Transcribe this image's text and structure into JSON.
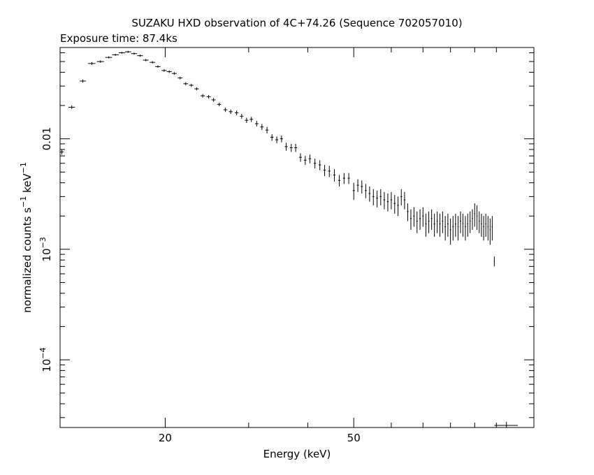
{
  "chart_data": {
    "type": "scatter",
    "title": "SUZAKU HXD observation of 4C+74.26 (Sequence 702057010)",
    "subtitle": "Exposure time: 87.4ks",
    "xlabel": "Energy (keV)",
    "ylabel_parts": {
      "base": "normalized counts s",
      "exp1": "−1",
      "mid": " keV",
      "exp2": "−1"
    },
    "x_scale": "log",
    "y_scale": "log",
    "xlim": [
      12,
      120
    ],
    "ylim": [
      2.44e-05,
      0.067
    ],
    "x_ticks": [
      {
        "value": 20,
        "label": "20"
      },
      {
        "value": 50,
        "label": "50"
      }
    ],
    "y_ticks": [
      {
        "value": 0.01,
        "label": "0.01",
        "exp": ""
      },
      {
        "value": 0.001,
        "label": "10",
        "exp": "−3"
      },
      {
        "value": 0.0001,
        "label": "10",
        "exp": "−4"
      }
    ],
    "grid": false,
    "legend": "none",
    "series": [
      {
        "points": [
          [
            12.1,
            0.0076,
            0.0004,
            0.1
          ],
          [
            12.7,
            0.0193,
            0.0007,
            0.2
          ],
          [
            13.4,
            0.0333,
            0.0011,
            0.2
          ],
          [
            14.0,
            0.048,
            0.0014,
            0.25
          ],
          [
            14.6,
            0.05,
            0.0013,
            0.25
          ],
          [
            15.2,
            0.0545,
            0.0013,
            0.25
          ],
          [
            15.7,
            0.0575,
            0.0013,
            0.25
          ],
          [
            16.2,
            0.06,
            0.0013,
            0.25
          ],
          [
            16.7,
            0.0612,
            0.0013,
            0.25
          ],
          [
            17.2,
            0.059,
            0.0013,
            0.25
          ],
          [
            17.7,
            0.0565,
            0.0013,
            0.25
          ],
          [
            18.2,
            0.0515,
            0.0012,
            0.25
          ],
          [
            18.8,
            0.0492,
            0.0012,
            0.25
          ],
          [
            19.3,
            0.045,
            0.0011,
            0.25
          ],
          [
            19.9,
            0.0415,
            0.0011,
            0.25
          ],
          [
            20.4,
            0.0405,
            0.0011,
            0.25
          ],
          [
            20.9,
            0.039,
            0.0011,
            0.25
          ],
          [
            21.5,
            0.0355,
            0.001,
            0.25
          ],
          [
            22.1,
            0.0315,
            0.001,
            0.25
          ],
          [
            22.7,
            0.0305,
            0.001,
            0.25
          ],
          [
            23.3,
            0.0283,
            0.0009,
            0.25
          ],
          [
            24.0,
            0.0245,
            0.0009,
            0.25
          ],
          [
            24.7,
            0.024,
            0.0009,
            0.25
          ],
          [
            25.3,
            0.0225,
            0.0009,
            0.25
          ],
          [
            26.0,
            0.0205,
            0.0008,
            0.25
          ],
          [
            26.8,
            0.0183,
            0.0008,
            0.25
          ],
          [
            27.5,
            0.0176,
            0.0008,
            0.25
          ],
          [
            28.3,
            0.0172,
            0.0008,
            0.25
          ],
          [
            29.0,
            0.016,
            0.0008,
            0.25
          ],
          [
            29.7,
            0.0147,
            0.0008,
            0.25
          ],
          [
            30.4,
            0.015,
            0.0008,
            0.25
          ],
          [
            31.2,
            0.0137,
            0.0008,
            0.25
          ],
          [
            32.0,
            0.0128,
            0.0008,
            0.25
          ],
          [
            32.8,
            0.012,
            0.0008,
            0.25
          ],
          [
            33.6,
            0.0103,
            0.0007,
            0.25
          ],
          [
            34.4,
            0.0098,
            0.0007,
            0.25
          ],
          [
            35.2,
            0.01,
            0.0007,
            0.25
          ],
          [
            36.0,
            0.0085,
            0.0007,
            0.25
          ],
          [
            36.9,
            0.0083,
            0.0007,
            0.25
          ],
          [
            37.7,
            0.0083,
            0.0007,
            0.25
          ],
          [
            38.6,
            0.0068,
            0.0006,
            0.25
          ],
          [
            39.5,
            0.0064,
            0.0006,
            0.25
          ],
          [
            40.4,
            0.0066,
            0.0006,
            0.25
          ],
          [
            41.4,
            0.006,
            0.0006,
            0.25
          ],
          [
            42.4,
            0.0058,
            0.0006,
            0.25
          ],
          [
            43.4,
            0.0052,
            0.0006,
            0.25
          ],
          [
            44.4,
            0.0051,
            0.0006,
            0.25
          ],
          [
            45.5,
            0.0047,
            0.0006,
            0.25
          ],
          [
            46.6,
            0.0042,
            0.0005,
            0.25
          ],
          [
            47.7,
            0.0044,
            0.0005,
            0.25
          ],
          [
            48.8,
            0.0044,
            0.0005,
            0.25
          ],
          [
            50.0,
            0.0034,
            0.0006,
            0.25
          ],
          [
            51.0,
            0.0038,
            0.0005,
            0.25
          ],
          [
            52.0,
            0.0037,
            0.0005,
            0.25
          ],
          [
            53.0,
            0.0034,
            0.0005,
            0.25
          ],
          [
            54.0,
            0.0032,
            0.0005,
            0.25
          ],
          [
            55.0,
            0.003,
            0.0005,
            0.25
          ],
          [
            56.0,
            0.0029,
            0.0005,
            0.25
          ],
          [
            57.0,
            0.003,
            0.0005,
            0.25
          ],
          [
            58.0,
            0.0028,
            0.0005,
            0.25
          ],
          [
            59.0,
            0.0027,
            0.0005,
            0.25
          ],
          [
            60.0,
            0.0028,
            0.0005,
            0.25
          ],
          [
            61.0,
            0.0026,
            0.0005,
            0.25
          ],
          [
            62.0,
            0.0025,
            0.0005,
            0.25
          ],
          [
            63.0,
            0.003,
            0.0005,
            0.25
          ],
          [
            64.0,
            0.0028,
            0.0005,
            0.25
          ],
          [
            65.0,
            0.0022,
            0.0004,
            0.25
          ],
          [
            66.0,
            0.0019,
            0.0004,
            0.25
          ],
          [
            67.0,
            0.002,
            0.0004,
            0.25
          ],
          [
            68.0,
            0.0018,
            0.0004,
            0.25
          ],
          [
            69.0,
            0.0019,
            0.0004,
            0.25
          ],
          [
            70.0,
            0.002,
            0.0004,
            0.25
          ],
          [
            71.0,
            0.0017,
            0.0004,
            0.25
          ],
          [
            72.0,
            0.0018,
            0.0004,
            0.25
          ],
          [
            73.0,
            0.0019,
            0.0004,
            0.25
          ],
          [
            74.0,
            0.0017,
            0.0004,
            0.25
          ],
          [
            75.0,
            0.0018,
            0.0004,
            0.25
          ],
          [
            76.0,
            0.0017,
            0.0004,
            0.25
          ],
          [
            77.0,
            0.0018,
            0.0004,
            0.25
          ],
          [
            78.0,
            0.0016,
            0.0004,
            0.25
          ],
          [
            79.0,
            0.0017,
            0.0004,
            0.25
          ],
          [
            80.0,
            0.0015,
            0.0004,
            0.25
          ],
          [
            81.0,
            0.0016,
            0.0004,
            0.25
          ],
          [
            82.0,
            0.0017,
            0.0004,
            0.25
          ],
          [
            83.0,
            0.0016,
            0.0004,
            0.25
          ],
          [
            84.0,
            0.0018,
            0.0004,
            0.25
          ],
          [
            85.0,
            0.0017,
            0.0004,
            0.25
          ],
          [
            86.0,
            0.0016,
            0.0004,
            0.25
          ],
          [
            87.0,
            0.0017,
            0.0004,
            0.25
          ],
          [
            88.0,
            0.0018,
            0.0004,
            0.25
          ],
          [
            89.0,
            0.0019,
            0.0004,
            0.25
          ],
          [
            90.0,
            0.0021,
            0.0005,
            0.25
          ],
          [
            91.0,
            0.002,
            0.0005,
            0.25
          ],
          [
            92.0,
            0.0018,
            0.0004,
            0.25
          ],
          [
            93.0,
            0.0017,
            0.0004,
            0.25
          ],
          [
            94.0,
            0.0016,
            0.0004,
            0.25
          ],
          [
            95.0,
            0.0017,
            0.0004,
            0.25
          ],
          [
            96.0,
            0.0016,
            0.0004,
            0.25
          ],
          [
            97.0,
            0.0015,
            0.0004,
            0.25
          ],
          [
            98.0,
            0.0016,
            0.0004,
            0.25
          ],
          [
            99.0,
            0.00078,
            8e-05,
            0.2
          ],
          [
            105.0,
            2.55e-05,
            2e-06,
            6
          ]
        ]
      }
    ]
  },
  "colors": {
    "ink": "#000000",
    "background": "#ffffff"
  }
}
